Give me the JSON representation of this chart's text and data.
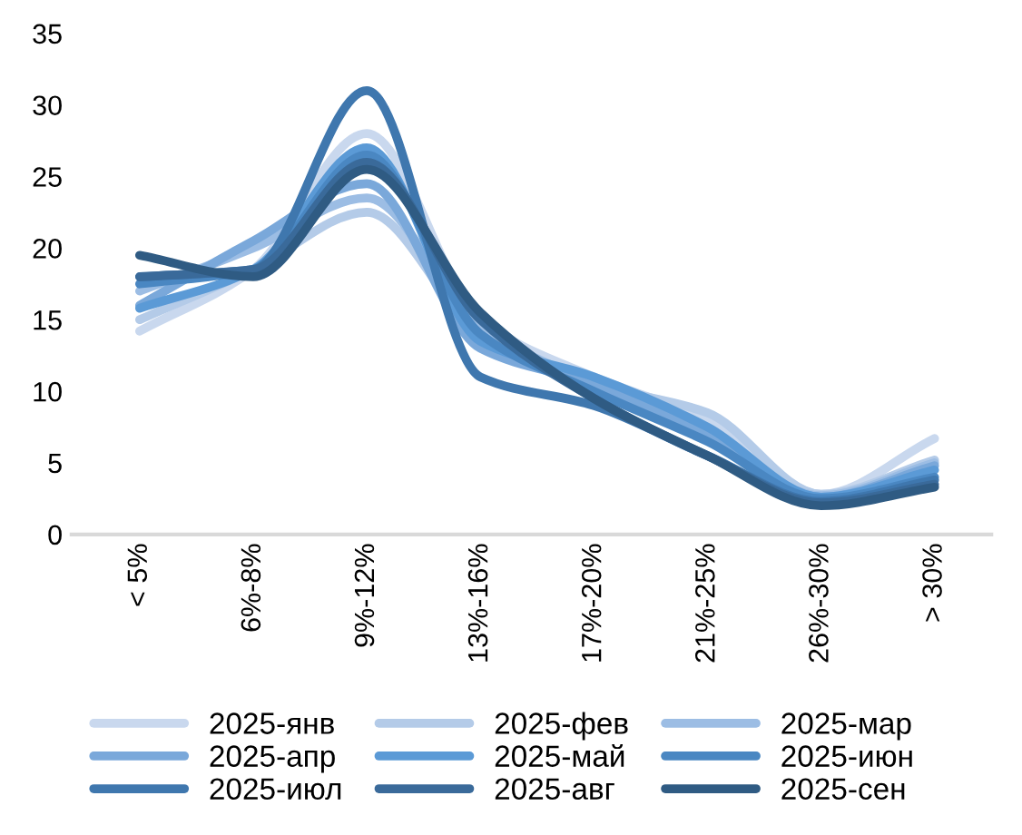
{
  "chart_data": {
    "type": "line",
    "categories": [
      "< 5%",
      "6%-8%",
      "9%-12%",
      "13%-16%",
      "17%-20%",
      "21%-25%",
      "26%-30%",
      "> 30%"
    ],
    "series": [
      {
        "name": "2025-янв",
        "color": "#c9d8ee",
        "values": [
          14.2,
          18.5,
          28,
          15,
          11,
          8,
          2.8,
          6.7
        ]
      },
      {
        "name": "2025-фев",
        "color": "#b4cbe8",
        "values": [
          15,
          18.5,
          22.5,
          14,
          10.5,
          8.5,
          2.8,
          5.2
        ]
      },
      {
        "name": "2025-мар",
        "color": "#9cbde4",
        "values": [
          17,
          20,
          23.5,
          14.5,
          10.5,
          7,
          2.7,
          5
        ]
      },
      {
        "name": "2025-апр",
        "color": "#7aa8da",
        "values": [
          16,
          20.5,
          24.5,
          13,
          10.5,
          7,
          2.6,
          4.8
        ]
      },
      {
        "name": "2025-май",
        "color": "#5b9ad6",
        "values": [
          15.8,
          18.5,
          27,
          13.5,
          11,
          7.5,
          2.6,
          4.5
        ]
      },
      {
        "name": "2025-июн",
        "color": "#4a87c2",
        "values": [
          17.5,
          18.5,
          26.5,
          14,
          10,
          6.5,
          2.5,
          4
        ]
      },
      {
        "name": "2025-июл",
        "color": "#3f77ae",
        "values": [
          18,
          18.5,
          31,
          11,
          9,
          5.5,
          2.3,
          3.8
        ]
      },
      {
        "name": "2025-авг",
        "color": "#3a6a9a",
        "values": [
          18,
          18.5,
          26,
          15,
          9.5,
          5.5,
          2.2,
          3.5
        ]
      },
      {
        "name": "2025-сен",
        "color": "#2f5b83",
        "values": [
          19.5,
          18,
          25.5,
          15.5,
          9.5,
          5.5,
          2,
          3.3
        ]
      }
    ],
    "ylim": [
      0,
      35
    ],
    "yticks": [
      0,
      5,
      10,
      15,
      20,
      25,
      30,
      35
    ],
    "grid": false,
    "legend": "bottom",
    "marker": "none",
    "line_style": "solid"
  }
}
